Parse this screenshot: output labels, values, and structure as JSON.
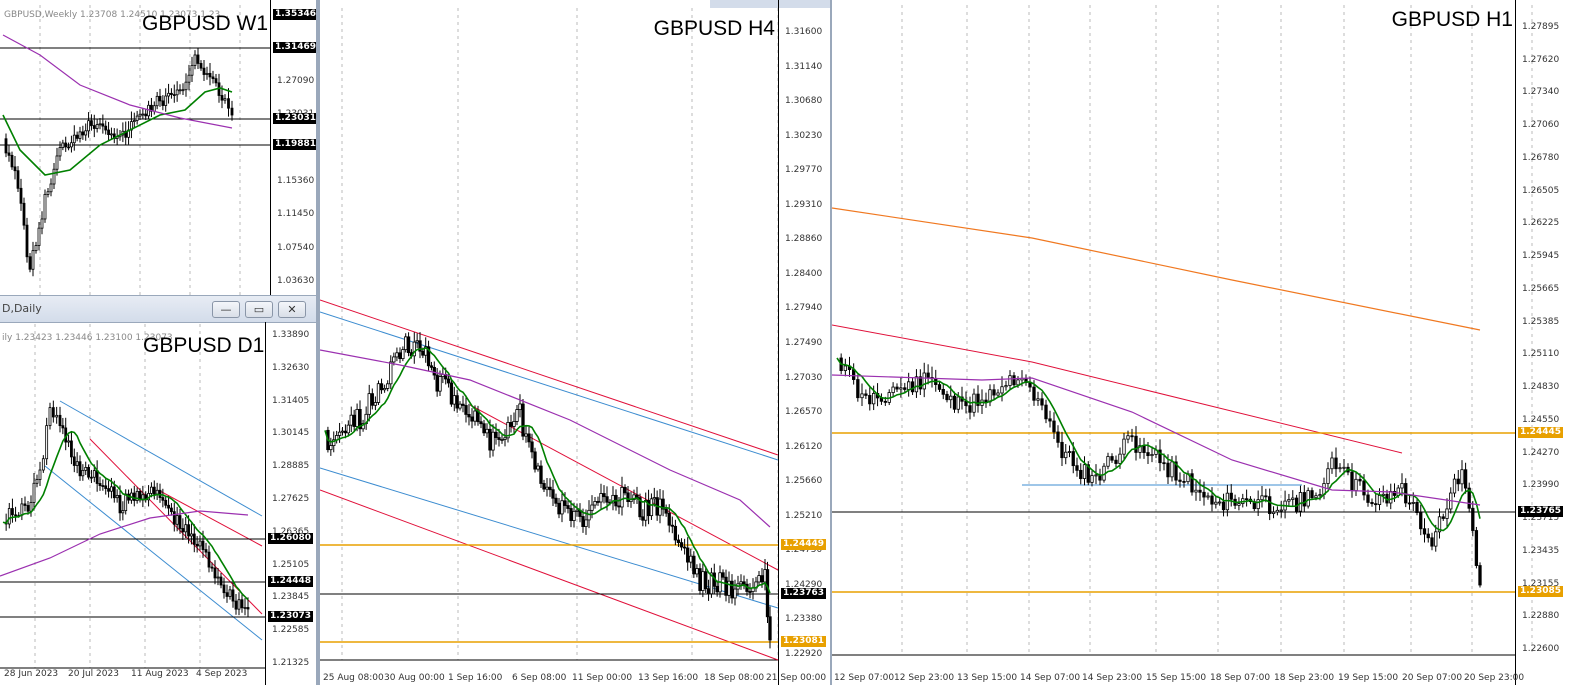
{
  "w1": {
    "title": "GBPUSD W1",
    "info": "GBPUSD,Weekly 1.23708 1.24510 1.23073 1.23...",
    "ticks": [
      "1.35346",
      "1.31469",
      "1.27090",
      "1.23031",
      "1.19881",
      "1.15360",
      "1.11450",
      "1.07540",
      "1.03630"
    ],
    "badges": [
      "1.35346",
      "1.31469",
      "1.23031",
      "1.19881"
    ]
  },
  "d1": {
    "title": "GBPUSD D1",
    "window_title": "D,Daily",
    "info": "ily 1.23423 1.23446 1.23100 1.23073",
    "ticks": [
      "1.33890",
      "1.32630",
      "1.31405",
      "1.30145",
      "1.28885",
      "1.27625",
      "1.26365",
      "1.25105",
      "1.23845",
      "1.22585",
      "1.21325"
    ],
    "badges": [
      "1.26080",
      "1.24448",
      "1.23073"
    ],
    "dates": [
      "28 Jun 2023",
      "20 Jul 2023",
      "11 Aug 2023",
      "4 Sep 2023"
    ],
    "buttons": {
      "minimize": "—",
      "restore": "▭",
      "close": "✕"
    }
  },
  "h4": {
    "title": "GBPUSD H4",
    "ticks": [
      "1.31600",
      "1.31140",
      "1.30680",
      "1.30230",
      "1.29770",
      "1.29310",
      "1.28860",
      "1.28400",
      "1.27940",
      "1.27490",
      "1.27030",
      "1.26570",
      "1.26120",
      "1.25660",
      "1.25210",
      "1.24750",
      "1.24290",
      "1.23380",
      "1.22920"
    ],
    "badges": [
      "1.24449",
      "1.23763",
      "1.23081"
    ],
    "dates": [
      "25 Aug 08:00",
      "30 Aug 00:00",
      "1 Sep 16:00",
      "6 Sep 08:00",
      "11 Sep 00:00",
      "13 Sep 16:00",
      "18 Sep 08:00",
      "21 Sep 00:00"
    ]
  },
  "h1": {
    "title": "GBPUSD H1",
    "ticks": [
      "1.27895",
      "1.27620",
      "1.27340",
      "1.27060",
      "1.26780",
      "1.26505",
      "1.26225",
      "1.25945",
      "1.25665",
      "1.25385",
      "1.25110",
      "1.24830",
      "1.24550",
      "1.24270",
      "1.23990",
      "1.23715",
      "1.23435",
      "1.23155",
      "1.22880",
      "1.22600"
    ],
    "badges": [
      "1.24445",
      "1.23765",
      "1.23085"
    ],
    "dates": [
      "12 Sep 07:00",
      "12 Sep 23:00",
      "13 Sep 15:00",
      "14 Sep 07:00",
      "14 Sep 23:00",
      "15 Sep 15:00",
      "18 Sep 07:00",
      "18 Sep 23:00",
      "19 Sep 15:00",
      "20 Sep 07:00",
      "20 Sep 23:00"
    ]
  },
  "colors": {
    "bull": "#000000",
    "ma_fast": "#008000",
    "ma_slow": "#9b30b0",
    "ma_200": "#f07820",
    "channel_red": "#e0103a",
    "channel_blue": "#3c8cd0",
    "level_orange": "#e8a000"
  }
}
